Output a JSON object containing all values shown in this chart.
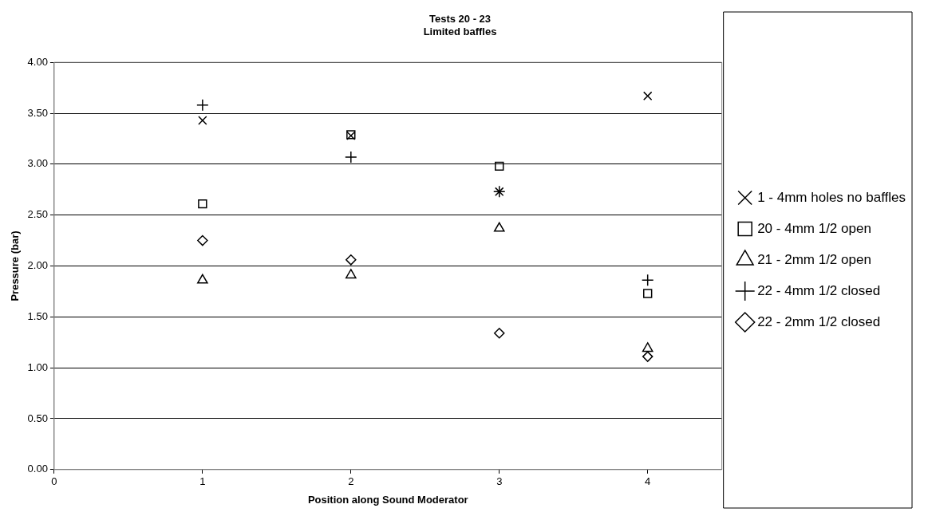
{
  "chart_data": {
    "type": "scatter",
    "title": "Tests 20 - 23",
    "subtitle": "Limited baffles",
    "xlabel": "Position along Sound Moderator",
    "ylabel": "Pressure (bar)",
    "x": [
      1,
      2,
      3,
      4
    ],
    "xlim": [
      0,
      4.5
    ],
    "xticks": [
      0,
      1,
      2,
      3,
      4
    ],
    "ylim": [
      0,
      4
    ],
    "yticks": [
      {
        "value": 0,
        "label": "0.00"
      },
      {
        "value": 0.5,
        "label": "0.50"
      },
      {
        "value": 1,
        "label": "1.00"
      },
      {
        "value": 1.5,
        "label": "1.50"
      },
      {
        "value": 2,
        "label": "2.00"
      },
      {
        "value": 2.5,
        "label": "2.50"
      },
      {
        "value": 3,
        "label": "3.00"
      },
      {
        "value": 3.5,
        "label": "3.50"
      },
      {
        "value": 4,
        "label": "4.00"
      }
    ],
    "grid": "y",
    "legend": "right",
    "series": [
      {
        "name": "1 - 4mm holes no baffles",
        "color": "#000000",
        "marker": "cross",
        "values": [
          3.43,
          3.28,
          2.73,
          3.67
        ]
      },
      {
        "name": "20 - 4mm 1/2 open",
        "color": "#000000",
        "marker": "square",
        "values": [
          2.61,
          3.29,
          2.98,
          1.73
        ]
      },
      {
        "name": "21 - 2mm 1/2 open",
        "color": "#000000",
        "marker": "triangle",
        "values": [
          1.86,
          1.91,
          2.37,
          1.19
        ]
      },
      {
        "name": "22 - 4mm 1/2 closed",
        "color": "#000000",
        "marker": "plus",
        "values": [
          3.58,
          3.07,
          2.73,
          1.86
        ]
      },
      {
        "name": "22 - 2mm 1/2 closed",
        "color": "#000000",
        "marker": "diamond",
        "values": [
          2.25,
          2.06,
          1.34,
          1.11
        ]
      }
    ]
  }
}
